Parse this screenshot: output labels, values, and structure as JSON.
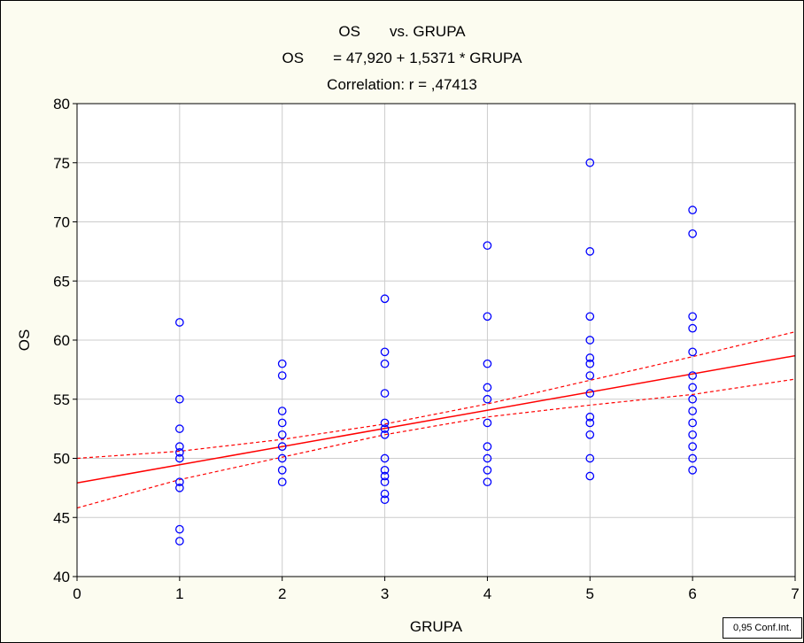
{
  "chart_data": {
    "type": "scatter",
    "title_lines": [
      "OS       vs. GRUPA",
      "OS       = 47,920 + 1,5371 * GRUPA",
      "Correlation: r = ,47413"
    ],
    "xlabel": "GRUPA",
    "ylabel": "OS",
    "xlim": [
      0,
      7
    ],
    "ylim": [
      40,
      80
    ],
    "xticks": [
      "0",
      "1",
      "2",
      "3",
      "4",
      "5",
      "6",
      "7"
    ],
    "yticks": [
      "40",
      "45",
      "50",
      "55",
      "60",
      "65",
      "70",
      "75",
      "80"
    ],
    "grid": true,
    "regression": {
      "intercept": 47.92,
      "slope": 1.5371
    },
    "confidence_band": {
      "label": "0,95 Conf.Int.",
      "x": [
        0,
        1,
        2,
        3,
        4,
        5,
        6,
        7
      ],
      "upper": [
        50.0,
        50.6,
        51.6,
        52.9,
        54.6,
        56.6,
        58.6,
        60.7
      ],
      "lower": [
        45.8,
        48.2,
        50.1,
        52.0,
        53.5,
        54.5,
        55.4,
        56.7
      ]
    },
    "points": [
      {
        "x": 1,
        "y": 61.5
      },
      {
        "x": 1,
        "y": 55
      },
      {
        "x": 1,
        "y": 52.5
      },
      {
        "x": 1,
        "y": 51
      },
      {
        "x": 1,
        "y": 50.5
      },
      {
        "x": 1,
        "y": 50
      },
      {
        "x": 1,
        "y": 48
      },
      {
        "x": 1,
        "y": 47.5
      },
      {
        "x": 1,
        "y": 44
      },
      {
        "x": 1,
        "y": 43
      },
      {
        "x": 2,
        "y": 58
      },
      {
        "x": 2,
        "y": 57
      },
      {
        "x": 2,
        "y": 54
      },
      {
        "x": 2,
        "y": 53
      },
      {
        "x": 2,
        "y": 52
      },
      {
        "x": 2,
        "y": 51
      },
      {
        "x": 2,
        "y": 50
      },
      {
        "x": 2,
        "y": 49
      },
      {
        "x": 2,
        "y": 48
      },
      {
        "x": 3,
        "y": 63.5
      },
      {
        "x": 3,
        "y": 59
      },
      {
        "x": 3,
        "y": 58
      },
      {
        "x": 3,
        "y": 55.5
      },
      {
        "x": 3,
        "y": 53
      },
      {
        "x": 3,
        "y": 52.5
      },
      {
        "x": 3,
        "y": 52
      },
      {
        "x": 3,
        "y": 50
      },
      {
        "x": 3,
        "y": 49
      },
      {
        "x": 3,
        "y": 48.5
      },
      {
        "x": 3,
        "y": 48
      },
      {
        "x": 3,
        "y": 47
      },
      {
        "x": 3,
        "y": 46.5
      },
      {
        "x": 4,
        "y": 68
      },
      {
        "x": 4,
        "y": 62
      },
      {
        "x": 4,
        "y": 58
      },
      {
        "x": 4,
        "y": 56
      },
      {
        "x": 4,
        "y": 55
      },
      {
        "x": 4,
        "y": 53
      },
      {
        "x": 4,
        "y": 51
      },
      {
        "x": 4,
        "y": 50
      },
      {
        "x": 4,
        "y": 49
      },
      {
        "x": 4,
        "y": 48
      },
      {
        "x": 5,
        "y": 75
      },
      {
        "x": 5,
        "y": 67.5
      },
      {
        "x": 5,
        "y": 62
      },
      {
        "x": 5,
        "y": 60
      },
      {
        "x": 5,
        "y": 58.5
      },
      {
        "x": 5,
        "y": 58
      },
      {
        "x": 5,
        "y": 57
      },
      {
        "x": 5,
        "y": 55.5
      },
      {
        "x": 5,
        "y": 53.5
      },
      {
        "x": 5,
        "y": 53
      },
      {
        "x": 5,
        "y": 52
      },
      {
        "x": 5,
        "y": 50
      },
      {
        "x": 5,
        "y": 48.5
      },
      {
        "x": 6,
        "y": 71
      },
      {
        "x": 6,
        "y": 69
      },
      {
        "x": 6,
        "y": 62
      },
      {
        "x": 6,
        "y": 61
      },
      {
        "x": 6,
        "y": 59
      },
      {
        "x": 6,
        "y": 57
      },
      {
        "x": 6,
        "y": 56
      },
      {
        "x": 6,
        "y": 55
      },
      {
        "x": 6,
        "y": 54
      },
      {
        "x": 6,
        "y": 53
      },
      {
        "x": 6,
        "y": 52
      },
      {
        "x": 6,
        "y": 51
      },
      {
        "x": 6,
        "y": 50
      },
      {
        "x": 6,
        "y": 49
      }
    ]
  },
  "colors": {
    "background": "#fcfcf0",
    "plot_area": "#ffffff",
    "grid": "#cccccc",
    "points": "#0000ff",
    "regression": "#ff0000"
  }
}
